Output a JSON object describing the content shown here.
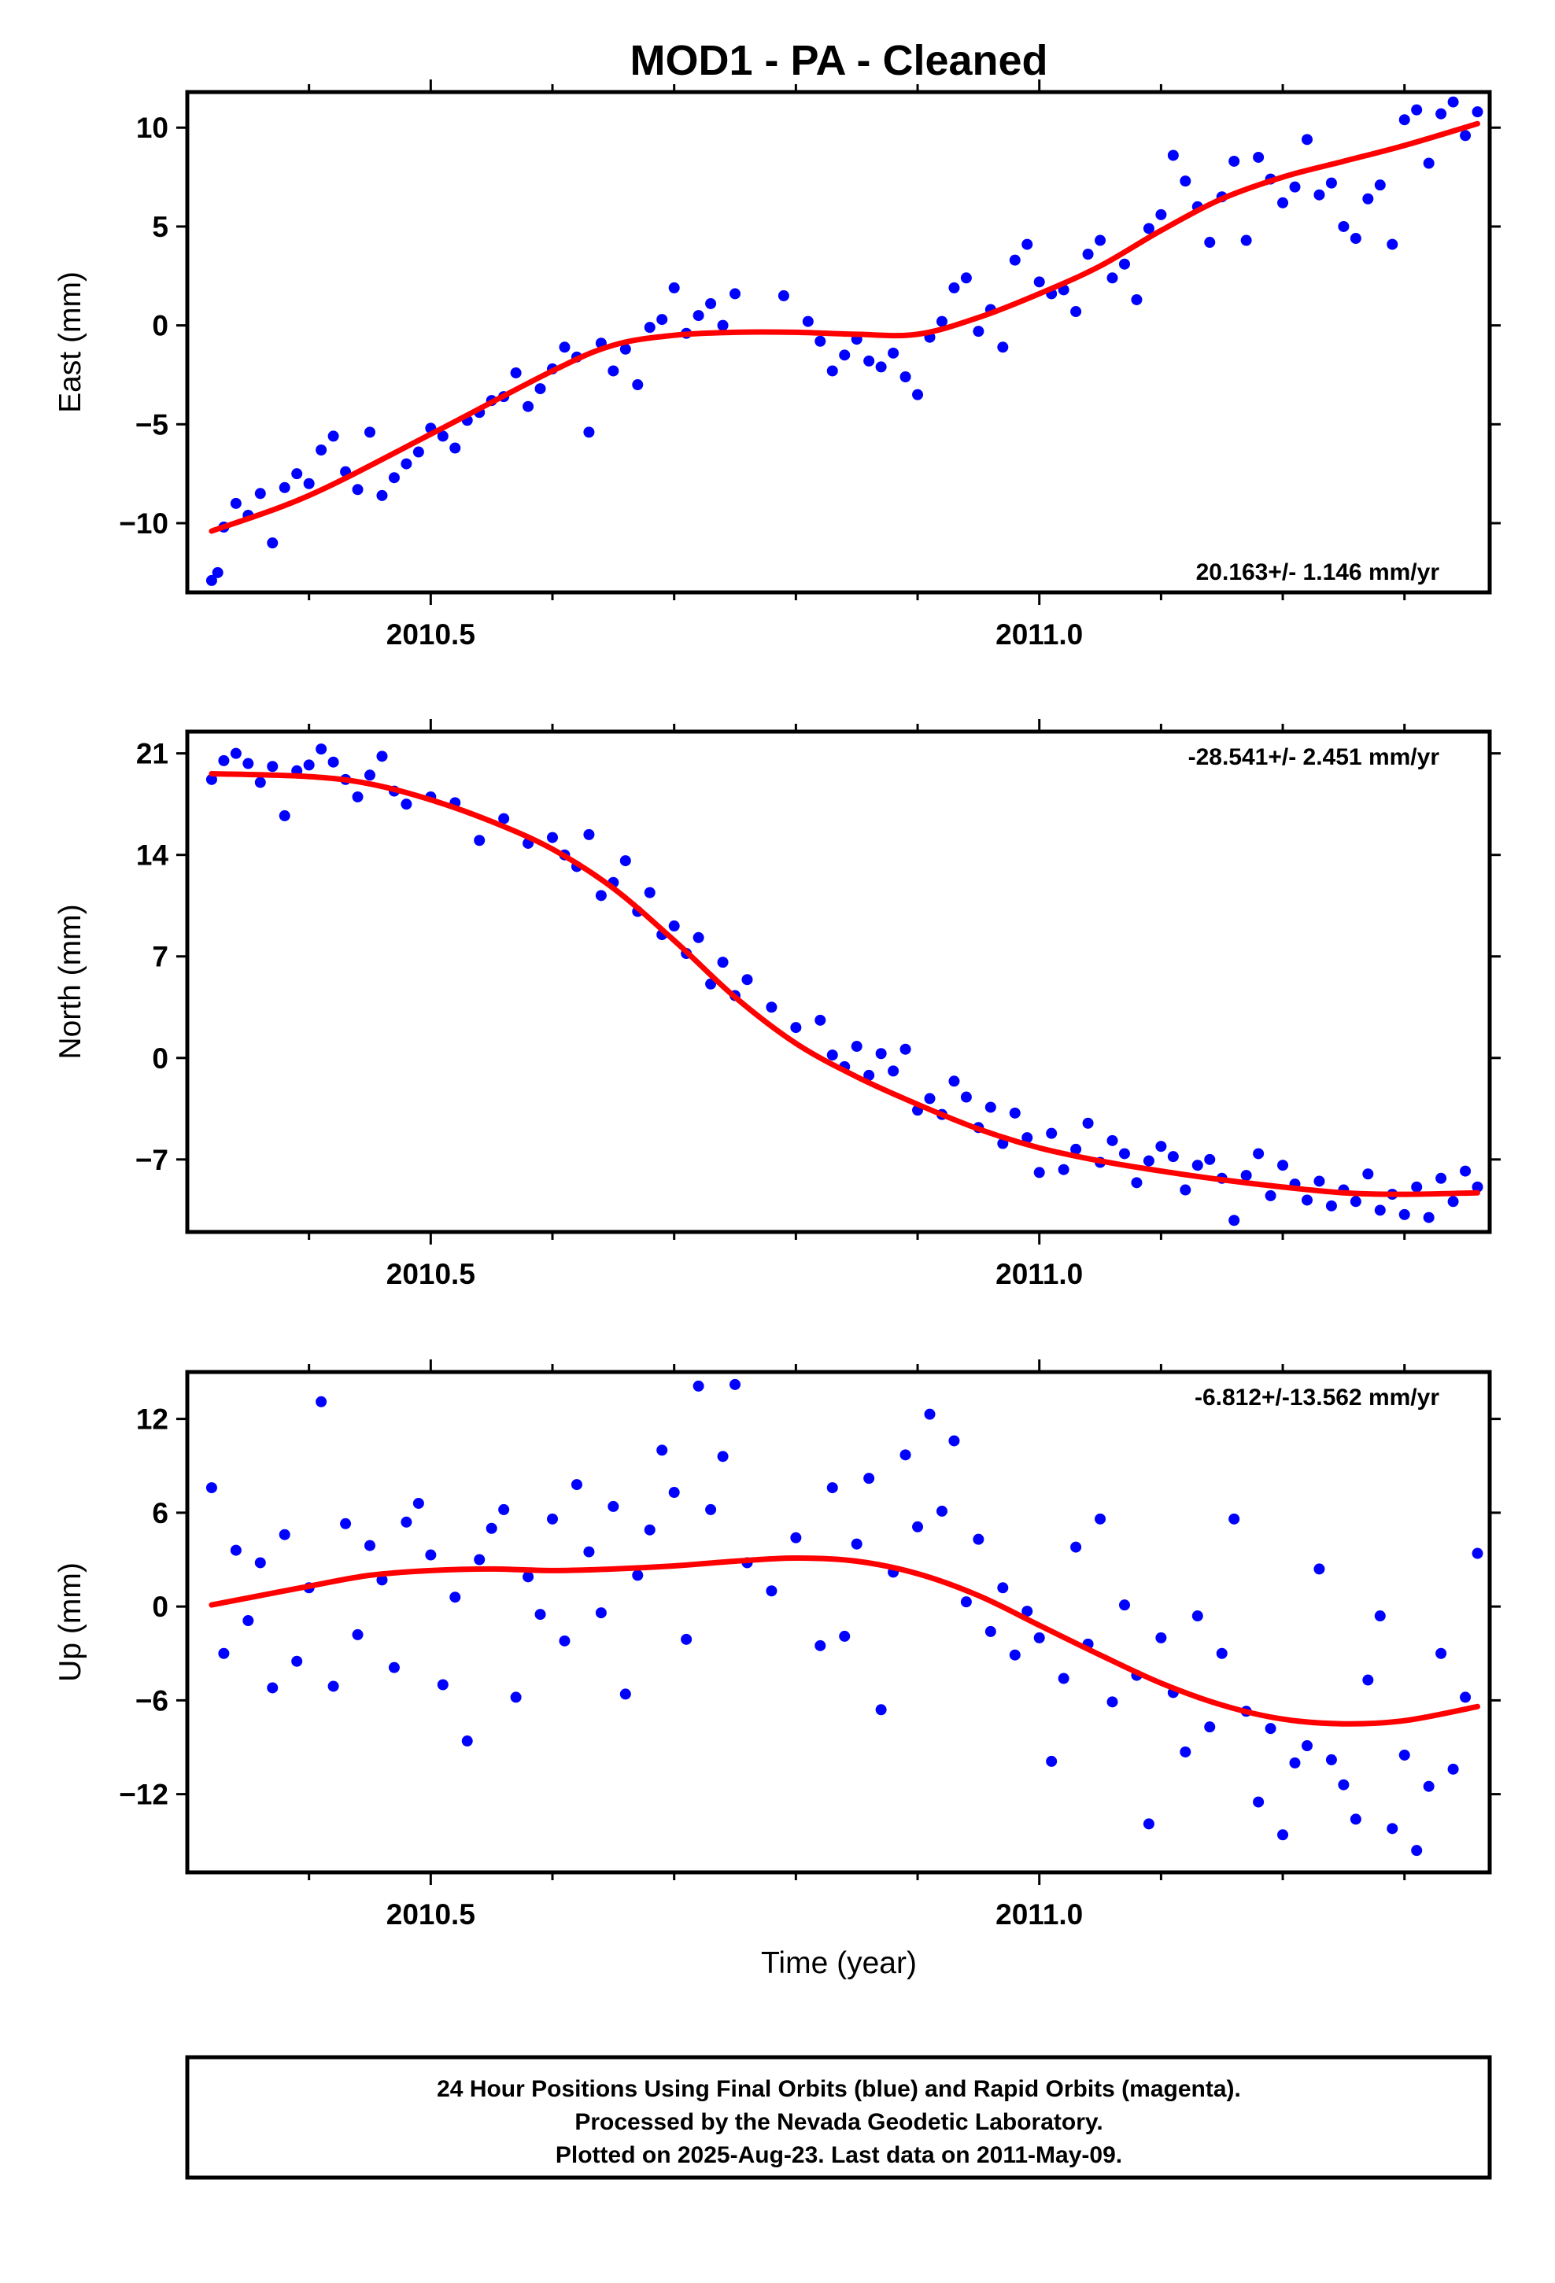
{
  "title": "MOD1  - PA - Cleaned",
  "xlabel": "Time (year)",
  "footer": [
    "24 Hour Positions Using Final Orbits (blue) and Rapid Orbits (magenta).",
    "Processed by the Nevada Geodetic Laboratory.",
    "Plotted on 2025-Aug-23. Last data on 2011-May-09."
  ],
  "colors": {
    "points": "#0000ff",
    "fit": "#ff0000",
    "frame": "#000000"
  },
  "chart_data": [
    {
      "type": "scatter",
      "ylabel": "East (mm)",
      "rate_label": "20.163+/- 1.146 mm/yr",
      "xlim": [
        2010.3,
        2011.37
      ],
      "ylim": [
        -13.5,
        11.8
      ],
      "x_ticks": [
        2010.5,
        2011.0
      ],
      "x_tick_labels": [
        "2010.5",
        "2011.0"
      ],
      "y_ticks": [
        -10,
        -5,
        0,
        5,
        10
      ],
      "y_tick_labels": [
        "−10",
        "−5",
        "0",
        "5",
        "10"
      ],
      "fit_x": [
        2010.32,
        2010.4,
        2010.5,
        2010.6,
        2010.65,
        2010.7,
        2010.75,
        2010.8,
        2010.85,
        2010.9,
        2010.95,
        2011.0,
        2011.05,
        2011.1,
        2011.15,
        2011.2,
        2011.25,
        2011.3,
        2011.36
      ],
      "fit_y": [
        -10.4,
        -8.6,
        -5.5,
        -2.3,
        -1.0,
        -0.5,
        -0.35,
        -0.35,
        -0.45,
        -0.45,
        0.4,
        1.6,
        3.0,
        4.8,
        6.4,
        7.5,
        8.3,
        9.1,
        10.2
      ],
      "series_x": [
        2010.32,
        2010.325,
        2010.33,
        2010.34,
        2010.35,
        2010.36,
        2010.37,
        2010.38,
        2010.39,
        2010.4,
        2010.41,
        2010.42,
        2010.43,
        2010.44,
        2010.45,
        2010.46,
        2010.47,
        2010.48,
        2010.49,
        2010.5,
        2010.51,
        2010.52,
        2010.53,
        2010.54,
        2010.55,
        2010.56,
        2010.57,
        2010.58,
        2010.59,
        2010.6,
        2010.61,
        2010.62,
        2010.63,
        2010.64,
        2010.65,
        2010.66,
        2010.67,
        2010.68,
        2010.69,
        2010.7,
        2010.71,
        2010.72,
        2010.73,
        2010.74,
        2010.75,
        2010.79,
        2010.81,
        2010.82,
        2010.83,
        2010.84,
        2010.85,
        2010.86,
        2010.87,
        2010.88,
        2010.89,
        2010.9,
        2010.91,
        2010.92,
        2010.93,
        2010.94,
        2010.95,
        2010.96,
        2010.97,
        2010.98,
        2010.99,
        2011.0,
        2011.01,
        2011.02,
        2011.03,
        2011.04,
        2011.05,
        2011.06,
        2011.07,
        2011.08,
        2011.09,
        2011.1,
        2011.11,
        2011.12,
        2011.13,
        2011.14,
        2011.15,
        2011.16,
        2011.17,
        2011.18,
        2011.19,
        2011.2,
        2011.21,
        2011.22,
        2011.23,
        2011.24,
        2011.25,
        2011.26,
        2011.27,
        2011.28,
        2011.29,
        2011.3,
        2011.31,
        2011.32,
        2011.33,
        2011.34,
        2011.35,
        2011.36
      ],
      "series_y": [
        -12.9,
        -12.5,
        -10.2,
        -9.0,
        -9.6,
        -8.5,
        -11.0,
        -8.2,
        -7.5,
        -8.0,
        -6.3,
        -5.6,
        -7.4,
        -8.3,
        -5.4,
        -8.6,
        -7.7,
        -7.0,
        -6.4,
        -5.2,
        -5.6,
        -6.2,
        -4.8,
        -4.4,
        -3.8,
        -3.6,
        -2.4,
        -4.1,
        -3.2,
        -2.2,
        -1.1,
        -1.6,
        -5.4,
        -0.9,
        -2.3,
        -1.2,
        -3.0,
        -0.1,
        0.3,
        1.9,
        -0.4,
        0.5,
        1.1,
        0.0,
        1.6,
        1.5,
        0.2,
        -0.8,
        -2.3,
        -1.5,
        -0.7,
        -1.8,
        -2.1,
        -1.4,
        -2.6,
        -3.5,
        -0.6,
        0.2,
        1.9,
        2.4,
        -0.3,
        0.8,
        -1.1,
        3.3,
        4.1,
        2.2,
        1.6,
        1.8,
        0.7,
        3.6,
        4.3,
        2.4,
        3.1,
        1.3,
        4.9,
        5.6,
        8.6,
        7.3,
        6.0,
        4.2,
        6.5,
        8.3,
        4.3,
        8.5,
        7.4,
        6.2,
        7.0,
        9.4,
        6.6,
        7.2,
        5.0,
        4.4,
        6.4,
        7.1,
        4.1,
        10.4,
        10.9,
        8.2,
        10.7,
        11.3,
        9.6,
        10.8
      ]
    },
    {
      "type": "scatter",
      "ylabel": "North (mm)",
      "rate_label": "-28.541+/- 2.451 mm/yr",
      "xlim": [
        2010.3,
        2011.37
      ],
      "ylim": [
        -12.0,
        22.5
      ],
      "x_ticks": [
        2010.5,
        2011.0
      ],
      "x_tick_labels": [
        "2010.5",
        "2011.0"
      ],
      "y_ticks": [
        -7,
        0,
        7,
        14,
        21
      ],
      "y_tick_labels": [
        "−7",
        "0",
        "7",
        "14",
        "21"
      ],
      "fit_x": [
        2010.32,
        2010.4,
        2010.45,
        2010.5,
        2010.55,
        2010.6,
        2010.65,
        2010.7,
        2010.75,
        2010.8,
        2010.85,
        2010.9,
        2010.95,
        2011.0,
        2011.05,
        2011.1,
        2011.15,
        2011.2,
        2011.25,
        2011.3,
        2011.36
      ],
      "fit_y": [
        19.6,
        19.4,
        18.9,
        17.8,
        16.3,
        14.4,
        11.7,
        8.1,
        4.2,
        1.0,
        -1.3,
        -3.2,
        -4.9,
        -6.2,
        -7.1,
        -7.8,
        -8.4,
        -8.9,
        -9.3,
        -9.4,
        -9.3
      ],
      "series_x": [
        2010.32,
        2010.33,
        2010.34,
        2010.35,
        2010.36,
        2010.37,
        2010.38,
        2010.39,
        2010.4,
        2010.41,
        2010.42,
        2010.43,
        2010.44,
        2010.45,
        2010.46,
        2010.47,
        2010.48,
        2010.5,
        2010.52,
        2010.54,
        2010.56,
        2010.58,
        2010.6,
        2010.61,
        2010.62,
        2010.63,
        2010.64,
        2010.65,
        2010.66,
        2010.67,
        2010.68,
        2010.69,
        2010.7,
        2010.71,
        2010.72,
        2010.73,
        2010.74,
        2010.75,
        2010.76,
        2010.78,
        2010.8,
        2010.82,
        2010.83,
        2010.84,
        2010.85,
        2010.86,
        2010.87,
        2010.88,
        2010.89,
        2010.9,
        2010.91,
        2010.92,
        2010.93,
        2010.94,
        2010.95,
        2010.96,
        2010.97,
        2010.98,
        2010.99,
        2011.0,
        2011.01,
        2011.02,
        2011.03,
        2011.04,
        2011.05,
        2011.06,
        2011.07,
        2011.08,
        2011.09,
        2011.1,
        2011.11,
        2011.12,
        2011.13,
        2011.14,
        2011.15,
        2011.16,
        2011.17,
        2011.18,
        2011.19,
        2011.2,
        2011.21,
        2011.22,
        2011.23,
        2011.24,
        2011.25,
        2011.26,
        2011.27,
        2011.28,
        2011.29,
        2011.3,
        2011.31,
        2011.32,
        2011.33,
        2011.34,
        2011.35,
        2011.36
      ],
      "series_y": [
        19.2,
        20.5,
        21.0,
        20.3,
        19.0,
        20.1,
        16.7,
        19.8,
        20.2,
        21.3,
        20.4,
        19.2,
        18.0,
        19.5,
        20.8,
        18.4,
        17.5,
        18.0,
        17.6,
        15.0,
        16.5,
        14.8,
        15.2,
        14.0,
        13.2,
        15.4,
        11.2,
        12.1,
        13.6,
        10.1,
        11.4,
        8.5,
        9.1,
        7.2,
        8.3,
        5.1,
        6.6,
        4.3,
        5.4,
        3.5,
        2.1,
        2.6,
        0.2,
        -0.6,
        0.8,
        -1.2,
        0.3,
        -0.9,
        0.6,
        -3.6,
        -2.8,
        -3.9,
        -1.6,
        -2.7,
        -4.8,
        -3.4,
        -5.9,
        -3.8,
        -5.5,
        -7.9,
        -5.2,
        -7.7,
        -6.3,
        -4.5,
        -7.2,
        -5.7,
        -6.6,
        -8.6,
        -7.1,
        -6.1,
        -6.8,
        -9.1,
        -7.4,
        -7.0,
        -8.3,
        -11.2,
        -8.1,
        -6.6,
        -9.5,
        -7.4,
        -8.7,
        -9.8,
        -8.5,
        -10.2,
        -9.1,
        -9.9,
        -8.0,
        -10.5,
        -9.4,
        -10.8,
        -8.9,
        -11.0,
        -8.3,
        -9.9,
        -7.8,
        -8.9
      ]
    },
    {
      "type": "scatter",
      "ylabel": "Up (mm)",
      "rate_label": "-6.812+/-13.562 mm/yr",
      "xlim": [
        2010.3,
        2011.37
      ],
      "ylim": [
        -17.0,
        15.0
      ],
      "x_ticks": [
        2010.5,
        2011.0
      ],
      "x_tick_labels": [
        "2010.5",
        "2011.0"
      ],
      "y_ticks": [
        -12,
        -6,
        0,
        6,
        12
      ],
      "y_tick_labels": [
        "−12",
        "−6",
        "0",
        "6",
        "12"
      ],
      "fit_x": [
        2010.32,
        2010.4,
        2010.45,
        2010.5,
        2010.55,
        2010.6,
        2010.65,
        2010.7,
        2010.75,
        2010.8,
        2010.85,
        2010.9,
        2010.95,
        2011.0,
        2011.05,
        2011.1,
        2011.15,
        2011.2,
        2011.25,
        2011.3,
        2011.36
      ],
      "fit_y": [
        0.1,
        1.3,
        2.0,
        2.3,
        2.4,
        2.3,
        2.4,
        2.6,
        2.9,
        3.1,
        2.9,
        2.1,
        0.7,
        -1.2,
        -3.1,
        -4.9,
        -6.3,
        -7.2,
        -7.5,
        -7.3,
        -6.4
      ],
      "series_x": [
        2010.32,
        2010.33,
        2010.34,
        2010.35,
        2010.36,
        2010.37,
        2010.38,
        2010.39,
        2010.4,
        2010.41,
        2010.42,
        2010.43,
        2010.44,
        2010.45,
        2010.46,
        2010.47,
        2010.48,
        2010.49,
        2010.5,
        2010.51,
        2010.52,
        2010.53,
        2010.54,
        2010.55,
        2010.56,
        2010.57,
        2010.58,
        2010.59,
        2010.6,
        2010.61,
        2010.62,
        2010.63,
        2010.64,
        2010.65,
        2010.66,
        2010.67,
        2010.68,
        2010.69,
        2010.7,
        2010.71,
        2010.72,
        2010.73,
        2010.74,
        2010.75,
        2010.76,
        2010.78,
        2010.8,
        2010.82,
        2010.83,
        2010.84,
        2010.85,
        2010.86,
        2010.87,
        2010.88,
        2010.89,
        2010.9,
        2010.91,
        2010.92,
        2010.93,
        2010.94,
        2010.95,
        2010.96,
        2010.97,
        2010.98,
        2010.99,
        2011.0,
        2011.01,
        2011.02,
        2011.03,
        2011.04,
        2011.05,
        2011.06,
        2011.07,
        2011.08,
        2011.09,
        2011.1,
        2011.11,
        2011.12,
        2011.13,
        2011.14,
        2011.15,
        2011.16,
        2011.17,
        2011.18,
        2011.19,
        2011.2,
        2011.21,
        2011.22,
        2011.23,
        2011.24,
        2011.25,
        2011.26,
        2011.27,
        2011.28,
        2011.29,
        2011.3,
        2011.31,
        2011.32,
        2011.33,
        2011.34,
        2011.35,
        2011.36
      ],
      "series_y": [
        7.6,
        -3.0,
        3.6,
        -0.9,
        2.8,
        -5.2,
        4.6,
        -3.5,
        1.2,
        13.1,
        -5.1,
        5.3,
        -1.8,
        3.9,
        1.7,
        -3.9,
        5.4,
        6.6,
        3.3,
        -5.0,
        0.6,
        -8.6,
        3.0,
        5.0,
        6.2,
        -5.8,
        1.9,
        -0.5,
        5.6,
        -2.2,
        7.8,
        3.5,
        -0.4,
        6.4,
        -5.6,
        2.0,
        4.9,
        10.0,
        7.3,
        -2.1,
        14.1,
        6.2,
        9.6,
        14.2,
        2.8,
        1.0,
        4.4,
        -2.5,
        7.6,
        -1.9,
        4.0,
        8.2,
        -6.6,
        2.2,
        9.7,
        5.1,
        12.3,
        6.1,
        10.6,
        0.3,
        4.3,
        -1.6,
        1.2,
        -3.1,
        -0.3,
        -2.0,
        -9.9,
        -4.6,
        3.8,
        -2.4,
        5.6,
        -6.1,
        0.1,
        -4.4,
        -13.9,
        -2.0,
        -5.5,
        -9.3,
        -0.6,
        -7.7,
        -3.0,
        5.6,
        -6.7,
        -12.5,
        -7.8,
        -14.6,
        -10.0,
        -8.9,
        2.4,
        -9.8,
        -11.4,
        -13.6,
        -4.7,
        -0.6,
        -14.2,
        -9.5,
        -15.6,
        -11.5,
        -3.0,
        -10.4,
        -5.8,
        3.4
      ]
    }
  ]
}
